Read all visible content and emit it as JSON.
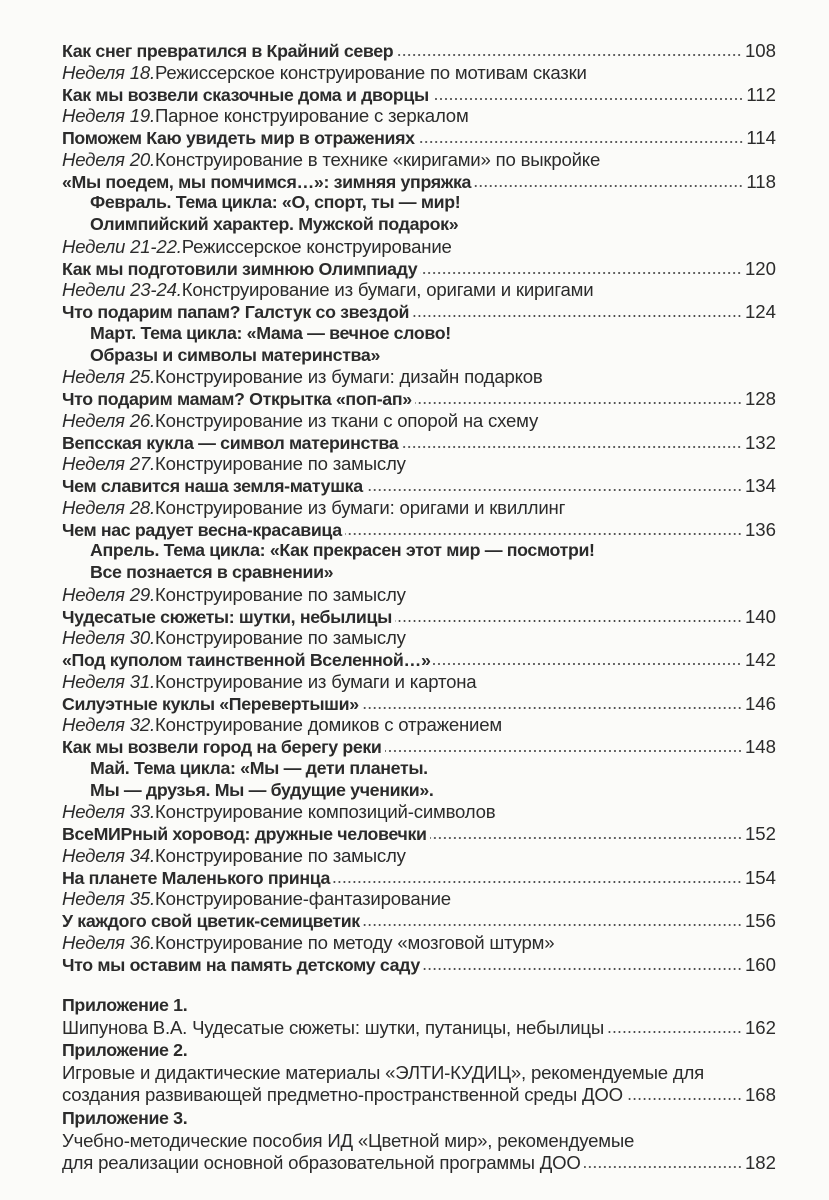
{
  "toc": [
    {
      "type": "b",
      "text": "Как снег превратился в Крайний север",
      "page": "108"
    },
    {
      "type": "w",
      "prefix": "Неделя 18.",
      "text": " Режиссерское конструирование по мотивам сказки"
    },
    {
      "type": "b",
      "text": "Как мы возвели сказочные дома и дворцы",
      "page": "112"
    },
    {
      "type": "w",
      "prefix": "Неделя 19.",
      "text": " Парное конструирование с зеркалом"
    },
    {
      "type": "b",
      "text": "Поможем Каю увидеть мир в отражениях",
      "page": "114"
    },
    {
      "type": "w",
      "prefix": "Неделя 20.",
      "text": " Конструирование в технике «киригами» по выкройке"
    },
    {
      "type": "b",
      "text": "«Мы поедем, мы помчимся…»: зимняя упряжка",
      "page": "118"
    },
    {
      "type": "h",
      "text": "Февраль. Тема цикла: «О, спорт, ты — мир!"
    },
    {
      "type": "h",
      "text": "Олимпийский характер. Мужской подарок»"
    },
    {
      "type": "w",
      "prefix": "Недели 21-22.",
      "text": " Режиссерское конструирование"
    },
    {
      "type": "b",
      "text": "Как мы подготовили зимнюю Олимпиаду",
      "page": "120"
    },
    {
      "type": "w",
      "prefix": "Недели 23-24.",
      "text": " Конструирование из бумаги, оригами и киригами"
    },
    {
      "type": "b",
      "text": "Что подарим папам? Галстук со звездой",
      "page": "124"
    },
    {
      "type": "h",
      "text": "Март. Тема цикла: «Мама — вечное слово!"
    },
    {
      "type": "h",
      "text": "Образы и символы материнства»"
    },
    {
      "type": "w",
      "prefix": "Неделя 25.",
      "text": " Конструирование из бумаги: дизайн подарков"
    },
    {
      "type": "b",
      "text": "Что подарим мамам? Открытка «поп-ап»",
      "page": "128"
    },
    {
      "type": "w",
      "prefix": "Неделя 26.",
      "text": " Конструирование из ткани с опорой на схему"
    },
    {
      "type": "b",
      "text": "Вепсская кукла — символ материнства",
      "page": "132"
    },
    {
      "type": "w",
      "prefix": "Неделя 27.",
      "text": " Конструирование по замыслу"
    },
    {
      "type": "b",
      "text": "Чем славится наша земля-матушка",
      "page": "134"
    },
    {
      "type": "w",
      "prefix": "Неделя 28.",
      "text": " Конструирование из бумаги: оригами и квиллинг"
    },
    {
      "type": "b",
      "text": "Чем нас радует весна-красавица",
      "page": "136"
    },
    {
      "type": "h",
      "text": "Апрель. Тема цикла: «Как прекрасен этот мир — посмотри!"
    },
    {
      "type": "h",
      "text": "Все познается в сравнении»"
    },
    {
      "type": "w",
      "prefix": "Неделя 29.",
      "text": " Конструирование по замыслу"
    },
    {
      "type": "b",
      "text": "Чудесатые сюжеты: шутки, небылицы",
      "page": "140"
    },
    {
      "type": "w",
      "prefix": "Неделя 30.",
      "text": " Конструирование по замыслу"
    },
    {
      "type": "b",
      "text": "«Под куполом таинственной Вселенной…»",
      "page": "142"
    },
    {
      "type": "w",
      "prefix": "Неделя 31.",
      "text": " Конструирование из бумаги и картона"
    },
    {
      "type": "b",
      "text": "Силуэтные куклы «Перевертыши»",
      "page": "146"
    },
    {
      "type": "w",
      "prefix": "Неделя 32.",
      "text": " Конструирование домиков с отражением"
    },
    {
      "type": "b",
      "text": "Как мы возвели город на берегу реки",
      "page": "148"
    },
    {
      "type": "h",
      "text": "Май. Тема цикла: «Мы — дети планеты."
    },
    {
      "type": "h",
      "text": "Мы — друзья. Мы — будущие ученики»."
    },
    {
      "type": "w",
      "prefix": "Неделя 33.",
      "text": " Конструирование композиций-символов"
    },
    {
      "type": "b",
      "text": "ВсеМИРный хоровод: дружные человечки",
      "page": "152"
    },
    {
      "type": "w",
      "prefix": "Неделя 34.",
      "text": " Конструирование по замыслу"
    },
    {
      "type": "b",
      "text": "На планете Маленького принца",
      "page": "154"
    },
    {
      "type": "w",
      "prefix": "Неделя 35.",
      "text": " Конструирование-фантазирование"
    },
    {
      "type": "b",
      "text": "У каждого свой цветик-семицветик",
      "page": "156"
    },
    {
      "type": "w",
      "prefix": "Неделя 36.",
      "text": " Конструирование по методу «мозговой штурм»"
    },
    {
      "type": "b",
      "text": "Что мы оставим на память детскому саду",
      "page": "160"
    }
  ],
  "appendices": [
    {
      "type": "a",
      "text": "Приложение 1."
    },
    {
      "type": "r",
      "text": "Шипунова В.А. Чудесатые сюжеты: шутки, путаницы, небылицы",
      "page": "162"
    },
    {
      "type": "a",
      "text": "Приложение 2."
    },
    {
      "type": "r",
      "text": "Игровые и дидактические материалы «ЭЛТИ-КУДИЦ», рекомендуемые для"
    },
    {
      "type": "r",
      "text": "создания развивающей предметно-пространственной среды ДОО",
      "page": "168"
    },
    {
      "type": "a",
      "text": "Приложение 3."
    },
    {
      "type": "r",
      "text": "Учебно-методические пособия ИД «Цветной мир», рекомендуемые"
    },
    {
      "type": "r",
      "text": "для реализации основной образовательной программы ДОО",
      "page": "182"
    }
  ]
}
